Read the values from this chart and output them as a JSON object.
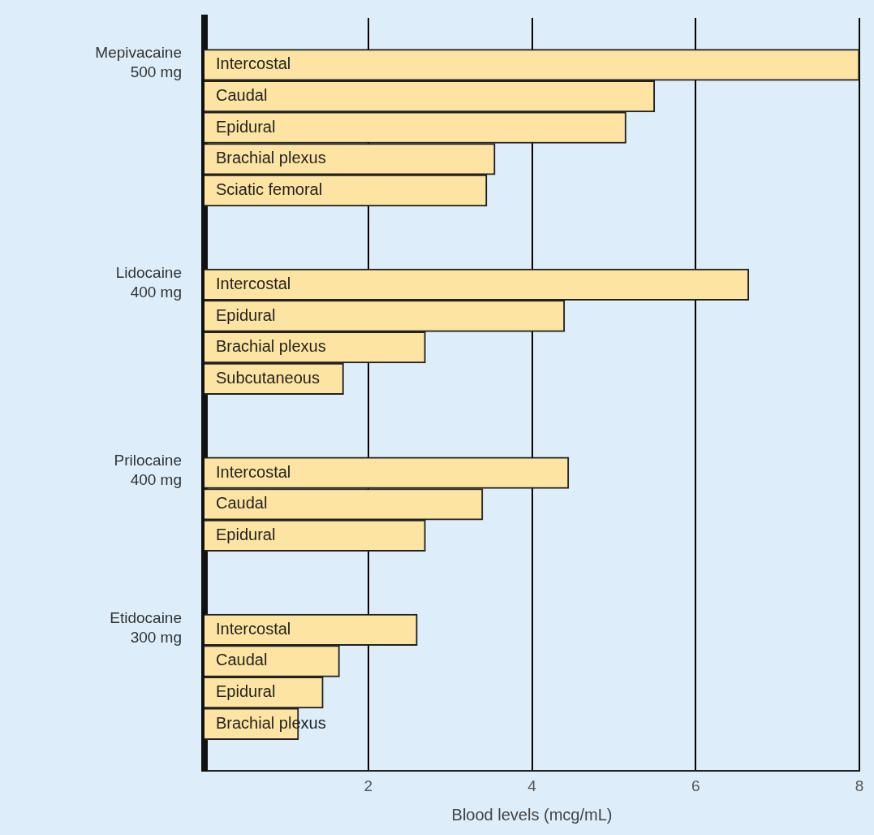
{
  "chart_data": {
    "type": "bar",
    "orientation": "horizontal",
    "categories": [
      null,
      "Intercostal",
      "Caudal",
      "Epidural",
      "Brachial plexus",
      "Sciatic femoral",
      null,
      null,
      "Intercostal",
      "Epidural",
      "Brachial plexus",
      "Subcutaneous",
      null,
      null,
      "Intercostal",
      "Caudal",
      "Epidural",
      null,
      null,
      "Intercostal",
      "Caudal",
      "Epidural",
      "Brachial plexus",
      null
    ],
    "values": [
      null,
      8.0,
      5.5,
      5.15,
      3.55,
      3.45,
      null,
      null,
      6.65,
      4.4,
      2.7,
      1.7,
      null,
      null,
      4.45,
      3.4,
      2.7,
      null,
      null,
      2.6,
      1.65,
      1.45,
      1.15,
      null
    ],
    "color": "#fde4a2",
    "xlabel": "Blood levels (mcg/mL)",
    "xlim": [
      0,
      8
    ],
    "xticks": [
      2,
      4,
      6,
      8
    ],
    "grid": "x",
    "annotations": [
      "Mepivacaine\n500 mg",
      "Lidocaine\n400 mg",
      "Prilocaine\n400 mg",
      "Etidocaine\n300 mg"
    ]
  }
}
